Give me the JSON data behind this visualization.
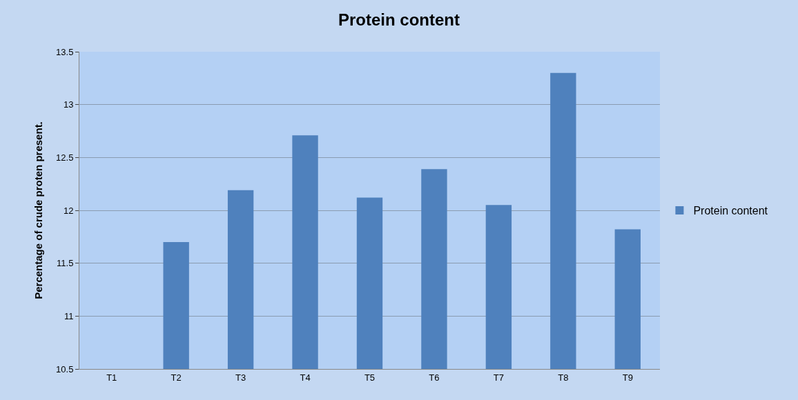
{
  "chart_data": {
    "type": "bar",
    "title": "Protein content",
    "ylabel": "Percentage of crude proten present.",
    "categories": [
      "T1",
      "T2",
      "T3",
      "T4",
      "T5",
      "T6",
      "T7",
      "T8",
      "T9"
    ],
    "series": [
      {
        "name": "Protein content",
        "color": "#4f81bd",
        "values": [
          null,
          11.7,
          12.19,
          12.71,
          12.12,
          12.39,
          12.05,
          13.3,
          11.82
        ]
      }
    ],
    "ylim": [
      10.5,
      13.5
    ],
    "yticks": [
      10.5,
      11,
      11.5,
      12,
      12.5,
      13,
      13.5
    ],
    "grid": "y",
    "legend": "right"
  }
}
